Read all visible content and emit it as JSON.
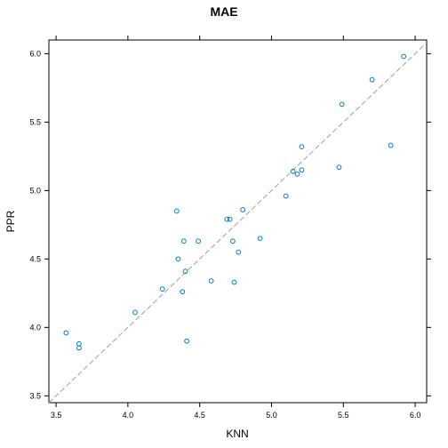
{
  "chart_data": {
    "type": "scatter",
    "title": "MAE",
    "xlabel": "KNN",
    "ylabel": "PPR",
    "xlim": [
      3.45,
      6.08
    ],
    "ylim": [
      3.45,
      6.1
    ],
    "x_ticks": [
      "3.5",
      "4.0",
      "4.5",
      "5.0",
      "5.5",
      "6.0"
    ],
    "y_ticks": [
      "3.5",
      "4.0",
      "4.5",
      "5.0",
      "5.5",
      "6.0"
    ],
    "reference_line": "y = x (dashed)",
    "grid": false,
    "point_color": "#0080c0",
    "points": [
      {
        "x": 3.57,
        "y": 3.96
      },
      {
        "x": 3.66,
        "y": 3.88
      },
      {
        "x": 3.66,
        "y": 3.85
      },
      {
        "x": 4.05,
        "y": 4.11
      },
      {
        "x": 4.24,
        "y": 4.28
      },
      {
        "x": 4.34,
        "y": 4.85
      },
      {
        "x": 4.35,
        "y": 4.5
      },
      {
        "x": 4.38,
        "y": 4.26
      },
      {
        "x": 4.39,
        "y": 4.63
      },
      {
        "x": 4.4,
        "y": 4.41
      },
      {
        "x": 4.41,
        "y": 3.9
      },
      {
        "x": 4.49,
        "y": 4.63
      },
      {
        "x": 4.58,
        "y": 4.34
      },
      {
        "x": 4.69,
        "y": 4.79
      },
      {
        "x": 4.71,
        "y": 4.79
      },
      {
        "x": 4.73,
        "y": 4.63
      },
      {
        "x": 4.74,
        "y": 4.33
      },
      {
        "x": 4.77,
        "y": 4.55
      },
      {
        "x": 4.8,
        "y": 4.86
      },
      {
        "x": 4.92,
        "y": 4.65
      },
      {
        "x": 5.1,
        "y": 4.96
      },
      {
        "x": 5.15,
        "y": 5.14
      },
      {
        "x": 5.18,
        "y": 5.12
      },
      {
        "x": 5.21,
        "y": 5.15
      },
      {
        "x": 5.21,
        "y": 5.32
      },
      {
        "x": 5.47,
        "y": 5.17
      },
      {
        "x": 5.49,
        "y": 5.63
      },
      {
        "x": 5.7,
        "y": 5.81
      },
      {
        "x": 5.83,
        "y": 5.33
      },
      {
        "x": 5.92,
        "y": 5.98
      }
    ]
  }
}
